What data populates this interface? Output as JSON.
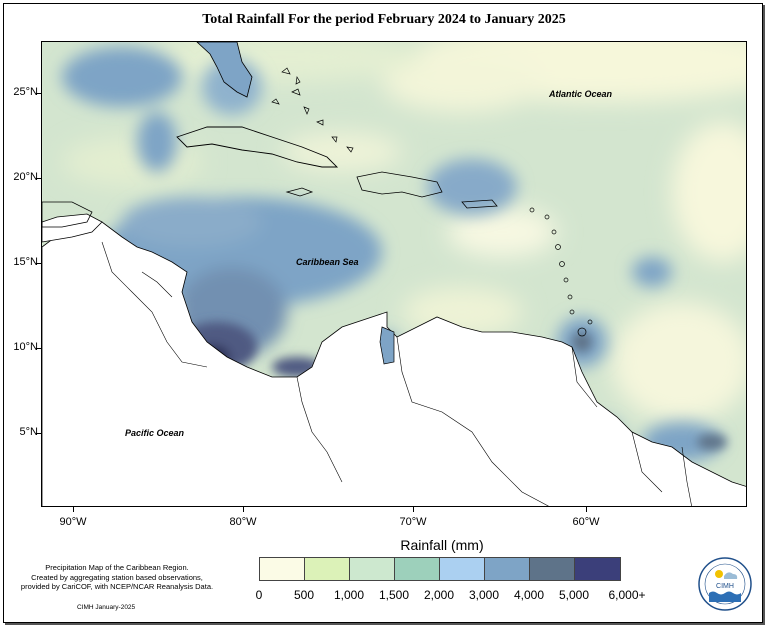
{
  "title": "Total Rainfall For the period February 2024 to January 2025",
  "lat_ticks": [
    "25°N",
    "20°N",
    "15°N",
    "10°N",
    "5°N"
  ],
  "lon_ticks": [
    "90°W",
    "80°W",
    "70°W",
    "60°W"
  ],
  "ocean_labels": {
    "atlantic": "Atlantic Ocean",
    "caribbean": "Caribbean Sea",
    "pacific": "Pacific Ocean"
  },
  "legend": {
    "title": "Rainfall (mm)",
    "ticks": [
      "0",
      "500",
      "1,000",
      "1,500",
      "2,000",
      "3,000",
      "4,000",
      "5,000",
      "6,000+"
    ],
    "colors": [
      "#fbfbe6",
      "#dcf2b8",
      "#cde8cf",
      "#9dd0bb",
      "#abd0f1",
      "#7ea4c6",
      "#5e7389",
      "#3b3f7a"
    ]
  },
  "credit": {
    "line1": "Precipitation Map of the Caribbean Region.",
    "line2": "Created by aggregating station based observations,",
    "line3": "provided by CariCOF, with NCEP/NCAR Reanalysis Data."
  },
  "stamp": "CIMH January-2025",
  "logo_text": "CIMH"
}
